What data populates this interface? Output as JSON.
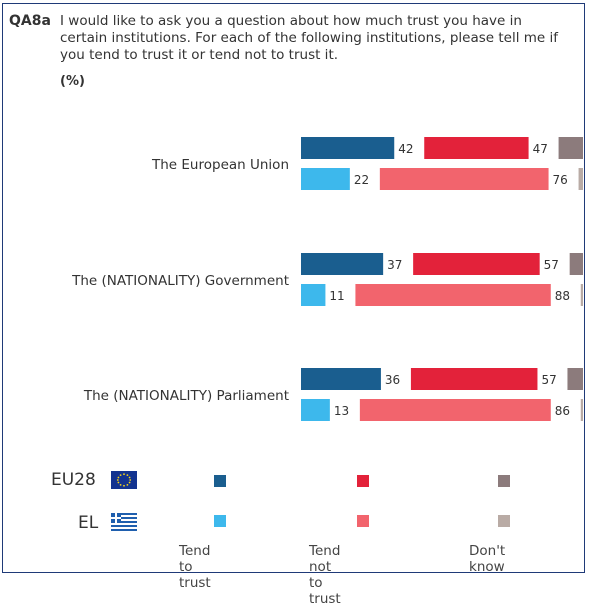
{
  "question": {
    "code": "QA8a",
    "text": "I would like to ask you a question about how much trust you have in certain institutions. For each of the following institutions, please tell me if you tend to trust it or tend not to trust it.",
    "unit": "(%)"
  },
  "legend": {
    "geo": [
      {
        "code": "EU28",
        "flag": "eu-flag-icon"
      },
      {
        "code": "EL",
        "flag": "greece-flag-icon"
      }
    ],
    "categories": [
      "Tend to trust",
      "Tend not to trust",
      "Don't know"
    ]
  },
  "colors": {
    "eu28": [
      "#1a5e8f",
      "#e3223a",
      "#8c7b7c"
    ],
    "el": [
      "#3db8ec",
      "#f2646d",
      "#b9aba5"
    ]
  },
  "chart_data": {
    "type": "bar",
    "categories": [
      "The European Union",
      "The (NATIONALITY) Government",
      "The (NATIONALITY) Parliament"
    ],
    "series": [
      {
        "name": "EU28",
        "values": [
          [
            42,
            47,
            11
          ],
          [
            37,
            57,
            6
          ],
          [
            36,
            57,
            7
          ]
        ]
      },
      {
        "name": "EL",
        "values": [
          [
            22,
            76,
            2
          ],
          [
            11,
            88,
            1
          ],
          [
            13,
            86,
            1
          ]
        ]
      }
    ],
    "segments": [
      "Tend to trust",
      "Tend not to trust",
      "Don't know"
    ]
  }
}
